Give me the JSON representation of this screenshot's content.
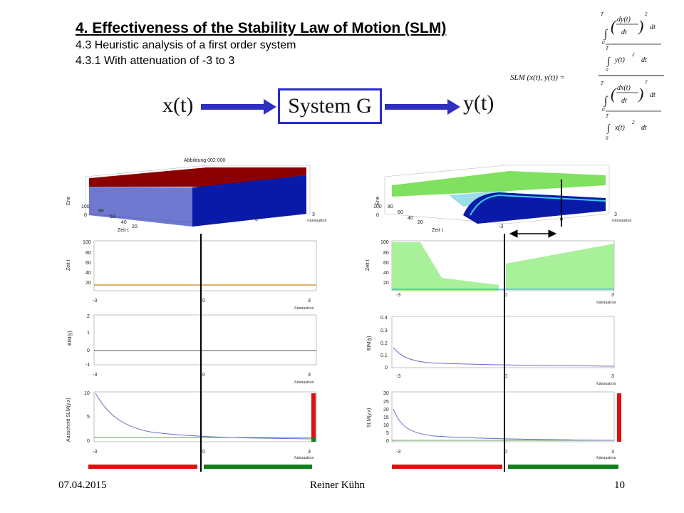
{
  "header": {
    "title": "4.    Effectiveness of the Stability Law of Motion (SLM)",
    "subtitle1": "4.3    Heuristic analysis of a first order system",
    "subtitle2": "4.3.1 With attenuation of -3 to 3"
  },
  "diagram": {
    "input": "x(t)",
    "system": "System G",
    "output": "y(t)"
  },
  "formula": {
    "lhs": "SLM (x(t), y(t)) =",
    "upper_limit": "T",
    "lower_limit": "0",
    "exponent": "2",
    "num_top": "dy(t)",
    "den": "dt",
    "num_bottom": "y(t)",
    "den_top": "dx(t)",
    "den_bottom": "x(t)",
    "dt": "dt"
  },
  "left_panel": {
    "surface_title": "Abbildung 002 000",
    "surface_zlabel": "Ene",
    "surface_xlabel": "Zeit t",
    "surface_ylabel": "Attenuation",
    "surface_yticks": [
      "-3",
      "0",
      "3"
    ],
    "surface_xticks": [
      "100",
      "80",
      "60",
      "40",
      "20",
      "0"
    ],
    "plot1_ylabel": "Zeit t",
    "plot1_yticks": [
      "100",
      "80",
      "60",
      "40",
      "20"
    ],
    "plot2_ylabel": "BIM(y)",
    "plot2_yticks": [
      "2",
      "1",
      "0",
      "-1"
    ],
    "plot3_ylabel": "Ausschnitt SLM(y,x)",
    "plot3_yticks": [
      "10",
      "5",
      "0"
    ],
    "xticks": [
      "-3",
      "0",
      "3"
    ],
    "xlabel": "Attenuation"
  },
  "right_panel": {
    "surface_zlabel": "Ene",
    "surface_xlabel": "Zeit t",
    "surface_ylabel": "Attenuation",
    "surface_yticks": [
      "-3",
      "0",
      "3"
    ],
    "surface_xticks": [
      "100",
      "80",
      "60",
      "40",
      "20",
      "0"
    ],
    "plot1_ylabel": "Zeit t",
    "plot1_yticks": [
      "100",
      "80",
      "60",
      "40",
      "20"
    ],
    "plot2_ylabel": "BIM(y)",
    "plot2_yticks": [
      "0.4",
      "0.3",
      "0.2",
      "0.1",
      "0"
    ],
    "plot3_ylabel": "SLM(y,x)",
    "plot3_yticks": [
      "30",
      "25",
      "20",
      "15",
      "10",
      "5",
      "0"
    ],
    "xticks": [
      "-3",
      "0",
      "3"
    ],
    "xlabel": "Attenuation"
  },
  "footer": {
    "date": "07.04.2015",
    "author": "Reiner Kühn",
    "page": "10"
  },
  "colors": {
    "unstable": "#e01010",
    "stable": "#10801a",
    "arrow_blue": "#3030c0",
    "curve": "#6a6ad0"
  }
}
